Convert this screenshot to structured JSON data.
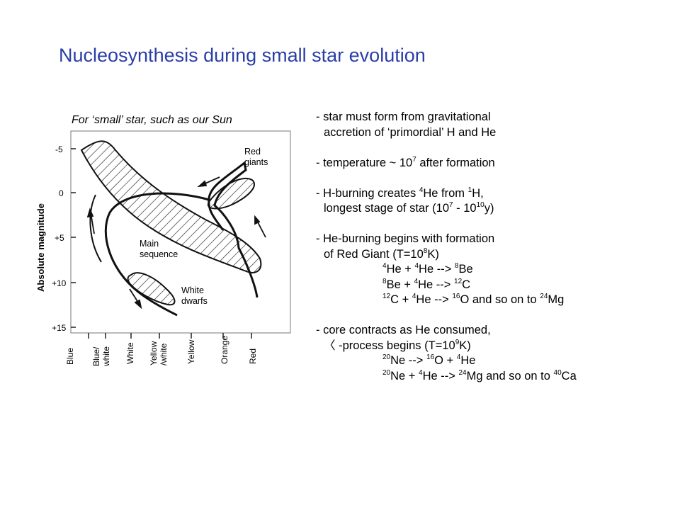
{
  "title": "Nucleosynthesis during small star evolution",
  "caption": "For ‘small’ star, such as our Sun",
  "diagram": {
    "y_axis_label": "Absolute magnitude",
    "y_ticks": [
      "-5",
      "0",
      "+5",
      "+10",
      "+15"
    ],
    "x_categories": [
      "Blue",
      "Blue/ white",
      "White",
      "Yellow /white",
      "Yellow",
      "Orange",
      "Red"
    ],
    "regions": {
      "red_giants": "Red giants",
      "main_sequence": "Main sequence",
      "white_dwarfs": "White dwarfs"
    }
  },
  "notes": {
    "formation_1": "- star must form from gravitational",
    "formation_2": "accretion of ‘primordial’ H and He",
    "temperature_prefix": "- temperature ~ 10",
    "temperature_exp": "7",
    "temperature_suffix": " after formation",
    "hburn_a": "- H-burning creates ",
    "hburn_b": "He from ",
    "hburn_c": "H,",
    "hburn_sup4": "4",
    "hburn_sup1": "1",
    "hburn2_a": "longest stage of star (10",
    "hburn2_exp1": "7",
    "hburn2_b": " - 10",
    "hburn2_exp2": "10",
    "hburn2_c": "y)",
    "heburn_1": "- He-burning begins with formation",
    "heburn_2a": "of Red Giant (T=10",
    "heburn_2exp": "8",
    "heburn_2b": "K)",
    "rxn1": [
      "4",
      "He + ",
      "4",
      "He --> ",
      "8",
      "Be"
    ],
    "rxn2": [
      "8",
      "Be + ",
      "4",
      "He --> ",
      "12",
      "C"
    ],
    "rxn3": [
      "12",
      "C + ",
      "4",
      "He --> ",
      "16",
      "O and so on to ",
      "24",
      "Mg"
    ],
    "core_1": "- core contracts as He consumed,",
    "core_2a": "〈 -process begins (T=10",
    "core_2exp": "9",
    "core_2b": "K)",
    "rxn4": [
      "20",
      "Ne --> ",
      "16",
      "O + ",
      "4",
      "He"
    ],
    "rxn5": [
      "20",
      "Ne + ",
      "4",
      "He --> ",
      "24",
      "Mg and so on to ",
      "40",
      "Ca"
    ]
  }
}
